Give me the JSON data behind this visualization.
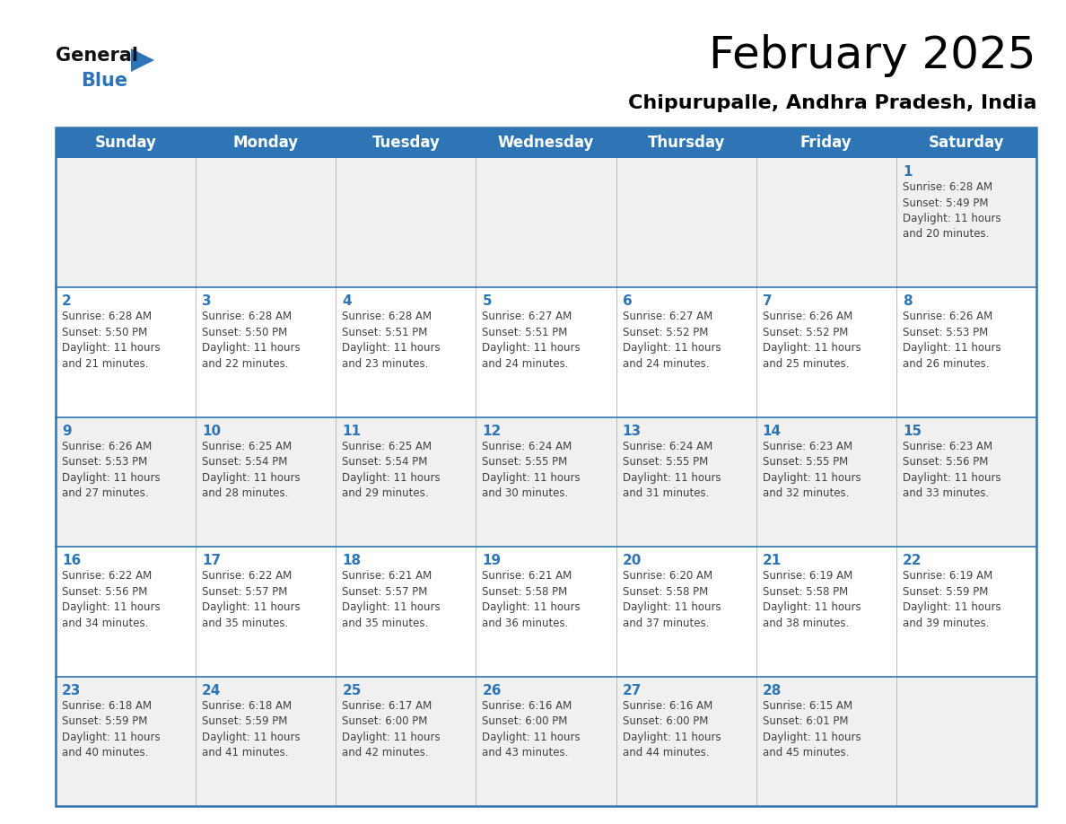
{
  "title": "February 2025",
  "subtitle": "Chipurupalle, Andhra Pradesh, India",
  "header_bg": "#2E75B6",
  "header_text_color": "#FFFFFF",
  "cell_bg_white": "#FFFFFF",
  "cell_bg_light": "#F0F0F0",
  "day_number_color": "#2E75B6",
  "cell_text_color": "#404040",
  "border_color": "#2E75B6",
  "grid_color": "#AAAAAA",
  "days_of_week": [
    "Sunday",
    "Monday",
    "Tuesday",
    "Wednesday",
    "Thursday",
    "Friday",
    "Saturday"
  ],
  "calendar": [
    [
      {
        "day": "",
        "info": ""
      },
      {
        "day": "",
        "info": ""
      },
      {
        "day": "",
        "info": ""
      },
      {
        "day": "",
        "info": ""
      },
      {
        "day": "",
        "info": ""
      },
      {
        "day": "",
        "info": ""
      },
      {
        "day": "1",
        "info": "Sunrise: 6:28 AM\nSunset: 5:49 PM\nDaylight: 11 hours\nand 20 minutes."
      }
    ],
    [
      {
        "day": "2",
        "info": "Sunrise: 6:28 AM\nSunset: 5:50 PM\nDaylight: 11 hours\nand 21 minutes."
      },
      {
        "day": "3",
        "info": "Sunrise: 6:28 AM\nSunset: 5:50 PM\nDaylight: 11 hours\nand 22 minutes."
      },
      {
        "day": "4",
        "info": "Sunrise: 6:28 AM\nSunset: 5:51 PM\nDaylight: 11 hours\nand 23 minutes."
      },
      {
        "day": "5",
        "info": "Sunrise: 6:27 AM\nSunset: 5:51 PM\nDaylight: 11 hours\nand 24 minutes."
      },
      {
        "day": "6",
        "info": "Sunrise: 6:27 AM\nSunset: 5:52 PM\nDaylight: 11 hours\nand 24 minutes."
      },
      {
        "day": "7",
        "info": "Sunrise: 6:26 AM\nSunset: 5:52 PM\nDaylight: 11 hours\nand 25 minutes."
      },
      {
        "day": "8",
        "info": "Sunrise: 6:26 AM\nSunset: 5:53 PM\nDaylight: 11 hours\nand 26 minutes."
      }
    ],
    [
      {
        "day": "9",
        "info": "Sunrise: 6:26 AM\nSunset: 5:53 PM\nDaylight: 11 hours\nand 27 minutes."
      },
      {
        "day": "10",
        "info": "Sunrise: 6:25 AM\nSunset: 5:54 PM\nDaylight: 11 hours\nand 28 minutes."
      },
      {
        "day": "11",
        "info": "Sunrise: 6:25 AM\nSunset: 5:54 PM\nDaylight: 11 hours\nand 29 minutes."
      },
      {
        "day": "12",
        "info": "Sunrise: 6:24 AM\nSunset: 5:55 PM\nDaylight: 11 hours\nand 30 minutes."
      },
      {
        "day": "13",
        "info": "Sunrise: 6:24 AM\nSunset: 5:55 PM\nDaylight: 11 hours\nand 31 minutes."
      },
      {
        "day": "14",
        "info": "Sunrise: 6:23 AM\nSunset: 5:55 PM\nDaylight: 11 hours\nand 32 minutes."
      },
      {
        "day": "15",
        "info": "Sunrise: 6:23 AM\nSunset: 5:56 PM\nDaylight: 11 hours\nand 33 minutes."
      }
    ],
    [
      {
        "day": "16",
        "info": "Sunrise: 6:22 AM\nSunset: 5:56 PM\nDaylight: 11 hours\nand 34 minutes."
      },
      {
        "day": "17",
        "info": "Sunrise: 6:22 AM\nSunset: 5:57 PM\nDaylight: 11 hours\nand 35 minutes."
      },
      {
        "day": "18",
        "info": "Sunrise: 6:21 AM\nSunset: 5:57 PM\nDaylight: 11 hours\nand 35 minutes."
      },
      {
        "day": "19",
        "info": "Sunrise: 6:21 AM\nSunset: 5:58 PM\nDaylight: 11 hours\nand 36 minutes."
      },
      {
        "day": "20",
        "info": "Sunrise: 6:20 AM\nSunset: 5:58 PM\nDaylight: 11 hours\nand 37 minutes."
      },
      {
        "day": "21",
        "info": "Sunrise: 6:19 AM\nSunset: 5:58 PM\nDaylight: 11 hours\nand 38 minutes."
      },
      {
        "day": "22",
        "info": "Sunrise: 6:19 AM\nSunset: 5:59 PM\nDaylight: 11 hours\nand 39 minutes."
      }
    ],
    [
      {
        "day": "23",
        "info": "Sunrise: 6:18 AM\nSunset: 5:59 PM\nDaylight: 11 hours\nand 40 minutes."
      },
      {
        "day": "24",
        "info": "Sunrise: 6:18 AM\nSunset: 5:59 PM\nDaylight: 11 hours\nand 41 minutes."
      },
      {
        "day": "25",
        "info": "Sunrise: 6:17 AM\nSunset: 6:00 PM\nDaylight: 11 hours\nand 42 minutes."
      },
      {
        "day": "26",
        "info": "Sunrise: 6:16 AM\nSunset: 6:00 PM\nDaylight: 11 hours\nand 43 minutes."
      },
      {
        "day": "27",
        "info": "Sunrise: 6:16 AM\nSunset: 6:00 PM\nDaylight: 11 hours\nand 44 minutes."
      },
      {
        "day": "28",
        "info": "Sunrise: 6:15 AM\nSunset: 6:01 PM\nDaylight: 11 hours\nand 45 minutes."
      },
      {
        "day": "",
        "info": ""
      }
    ]
  ]
}
